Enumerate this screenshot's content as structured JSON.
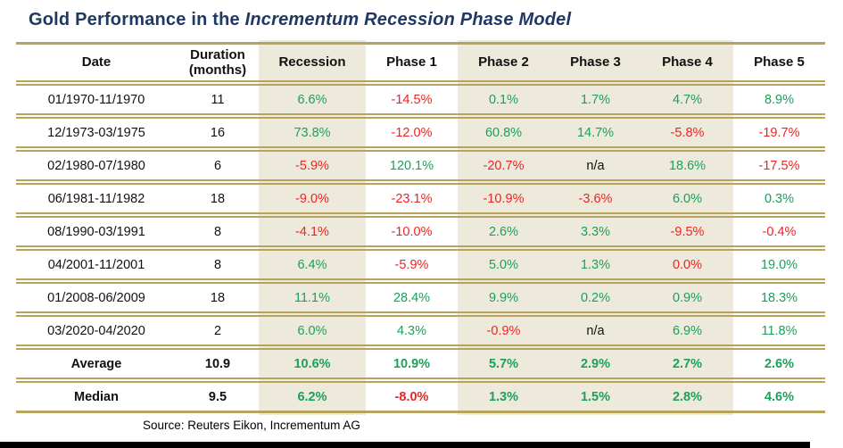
{
  "title": {
    "prefix": "Gold Performance in the ",
    "italic": "Incrementum Recession Phase Model"
  },
  "colors": {
    "title_navy": "#1F3864",
    "row_line_tan": "#b7a35c",
    "highlight_cream": "#EDEADB",
    "positive_green": "#1CA05A",
    "negative_red": "#EE2424",
    "text_black": "#111111",
    "bottom_bar_black": "#000000"
  },
  "table": {
    "columns": [
      "Date",
      "Duration (months)",
      "Recession",
      "Phase 1",
      "Phase 2",
      "Phase 3",
      "Phase 4",
      "Phase 5"
    ],
    "rows": [
      {
        "date": "01/1970-11/1970",
        "duration": "11",
        "values": [
          "6.6%",
          "-14.5%",
          "0.1%",
          "1.7%",
          "4.7%",
          "8.9%"
        ]
      },
      {
        "date": "12/1973-03/1975",
        "duration": "16",
        "values": [
          "73.8%",
          "-12.0%",
          "60.8%",
          "14.7%",
          "-5.8%",
          "-19.7%"
        ]
      },
      {
        "date": "02/1980-07/1980",
        "duration": "6",
        "values": [
          "-5.9%",
          "120.1%",
          "-20.7%",
          "n/a",
          "18.6%",
          "-17.5%"
        ]
      },
      {
        "date": "06/1981-11/1982",
        "duration": "18",
        "values": [
          "-9.0%",
          "-23.1%",
          "-10.9%",
          "-3.6%",
          "6.0%",
          "0.3%"
        ]
      },
      {
        "date": "08/1990-03/1991",
        "duration": "8",
        "values": [
          "-4.1%",
          "-10.0%",
          "2.6%",
          "3.3%",
          "-9.5%",
          "-0.4%"
        ]
      },
      {
        "date": "04/2001-11/2001",
        "duration": "8",
        "values": [
          "6.4%",
          "-5.9%",
          "5.0%",
          "1.3%",
          "0.0%",
          "19.0%"
        ]
      },
      {
        "date": "01/2008-06/2009",
        "duration": "18",
        "values": [
          "11.1%",
          "28.4%",
          "9.9%",
          "0.2%",
          "0.9%",
          "18.3%"
        ]
      },
      {
        "date": "03/2020-04/2020",
        "duration": "2",
        "values": [
          "6.0%",
          "4.3%",
          "-0.9%",
          "n/a",
          "6.9%",
          "11.8%"
        ]
      }
    ],
    "summary_rows": [
      {
        "label": "Average",
        "duration": "10.9",
        "values": [
          "10.6%",
          "10.9%",
          "5.7%",
          "2.9%",
          "2.7%",
          "2.6%"
        ]
      },
      {
        "label": "Median",
        "duration": "9.5",
        "values": [
          "6.2%",
          "-8.0%",
          "1.3%",
          "1.5%",
          "2.8%",
          "4.6%"
        ]
      }
    ]
  },
  "source": "Source: Reuters Eikon, Incrementum AG"
}
